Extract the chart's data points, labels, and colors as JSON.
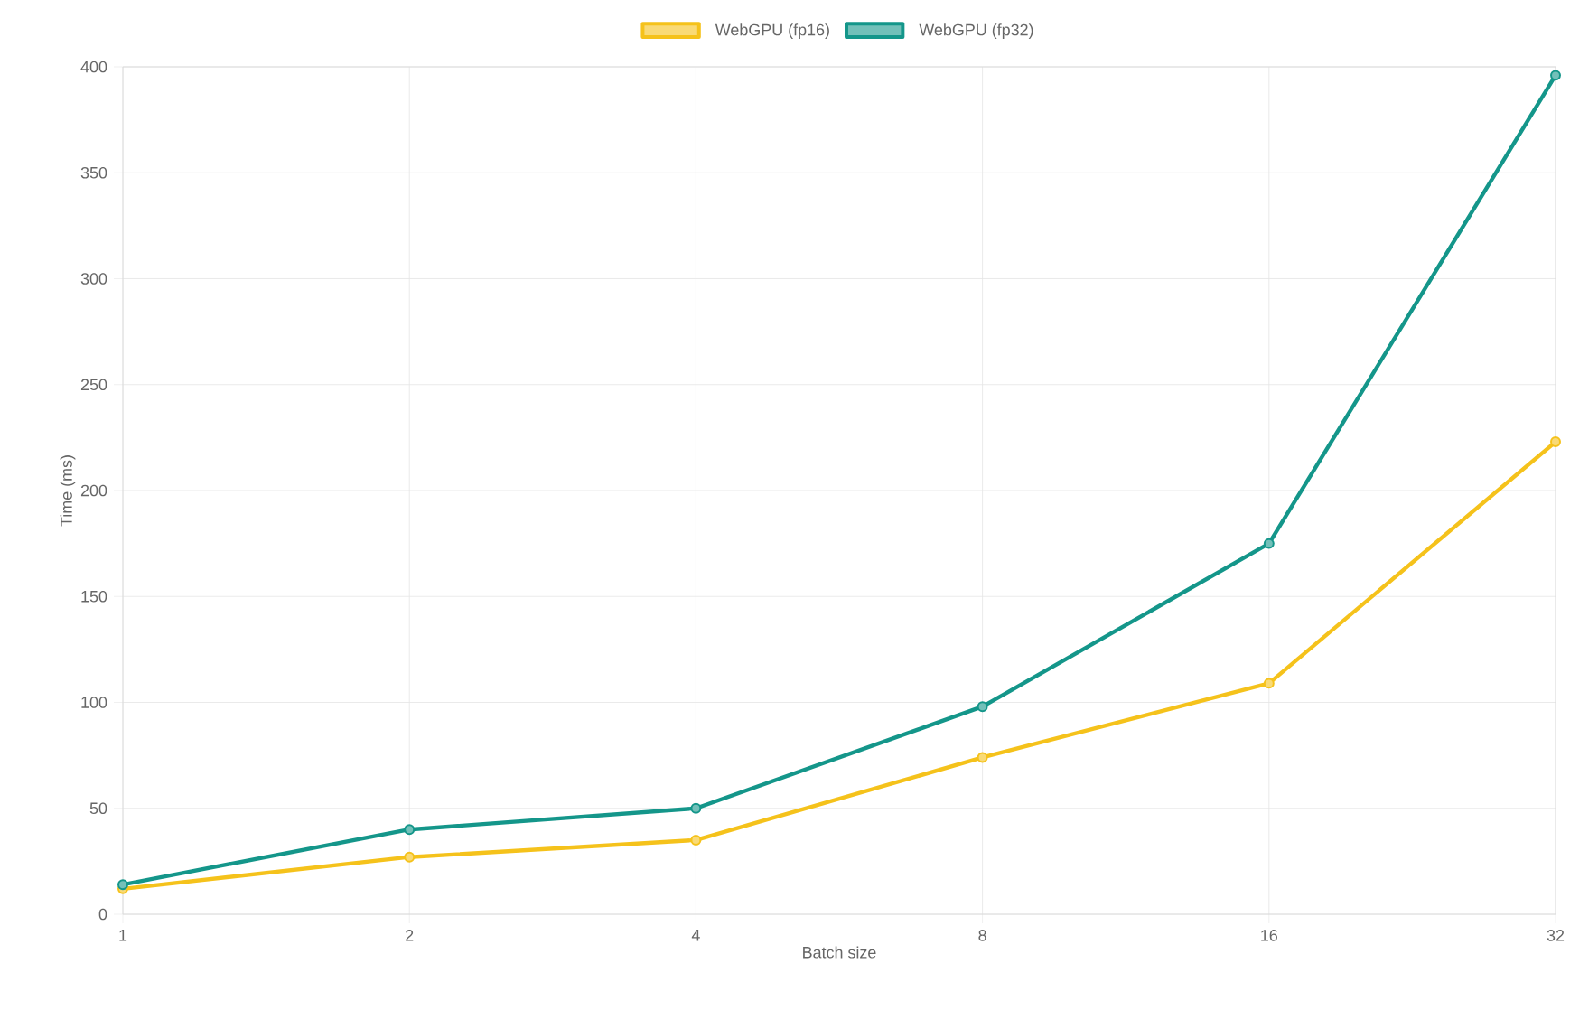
{
  "chart_data": {
    "type": "line",
    "xlabel": "Batch size",
    "ylabel": "Time (ms)",
    "categories": [
      "1",
      "2",
      "4",
      "8",
      "16",
      "32"
    ],
    "series": [
      {
        "name": "WebGPU (fp16)",
        "color": "#f5c21b",
        "values": [
          12,
          27,
          35,
          74,
          109,
          223
        ]
      },
      {
        "name": "WebGPU (fp32)",
        "color": "#14968a",
        "values": [
          14,
          40,
          50,
          98,
          175,
          396
        ]
      }
    ],
    "ylim": [
      0,
      400
    ],
    "yticks": [
      0,
      50,
      100,
      150,
      200,
      250,
      300,
      350,
      400
    ],
    "grid": true,
    "legend": "top",
    "marker": "circle",
    "line_style": "solid"
  }
}
